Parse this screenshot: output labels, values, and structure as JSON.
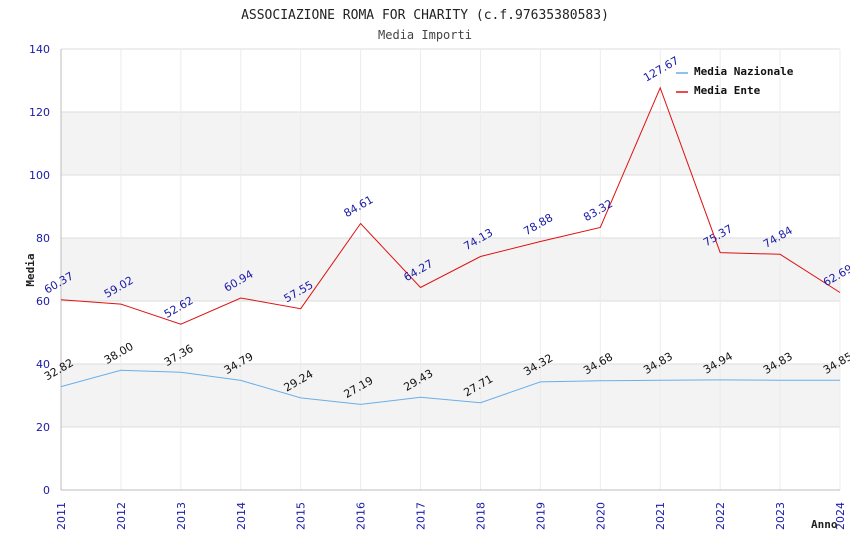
{
  "chart_data": {
    "type": "line",
    "title": "ASSOCIAZIONE ROMA FOR CHARITY (c.f.97635380583)",
    "subtitle": "Media Importi",
    "xlabel": "Anno",
    "ylabel": "Media",
    "ylim": [
      0,
      140
    ],
    "yticks": [
      0,
      20,
      40,
      60,
      80,
      100,
      120,
      140
    ],
    "categories": [
      "2011",
      "2012",
      "2013",
      "2014",
      "2015",
      "2016",
      "2017",
      "2018",
      "2019",
      "2020",
      "2021",
      "2022",
      "2023",
      "2024"
    ],
    "series": [
      {
        "name": "Media Nazionale",
        "color": "#6aaee8",
        "values": [
          32.82,
          38.0,
          37.36,
          34.79,
          29.24,
          27.19,
          29.43,
          27.71,
          34.32,
          34.68,
          34.83,
          34.94,
          34.83,
          34.85
        ],
        "labels": [
          "32.82",
          "38.00",
          "37.36",
          "34.79",
          "29.24",
          "27.19",
          "29.43",
          "27.71",
          "34.32",
          "34.68",
          "34.83",
          "34.94",
          "34.83",
          "34.85"
        ]
      },
      {
        "name": "Media Ente",
        "color": "#e01010",
        "values": [
          60.37,
          59.02,
          52.62,
          60.94,
          57.55,
          84.61,
          64.27,
          74.13,
          78.88,
          83.32,
          127.67,
          75.37,
          74.84,
          62.69
        ],
        "labels": [
          "60.37",
          "59.02",
          "52.62",
          "60.94",
          "57.55",
          "84.61",
          "64.27",
          "74.13",
          "78.88",
          "83.32",
          "127.67",
          "75.37",
          "74.84",
          "62.69"
        ]
      }
    ],
    "legend_position": "top-right",
    "grid": true
  }
}
